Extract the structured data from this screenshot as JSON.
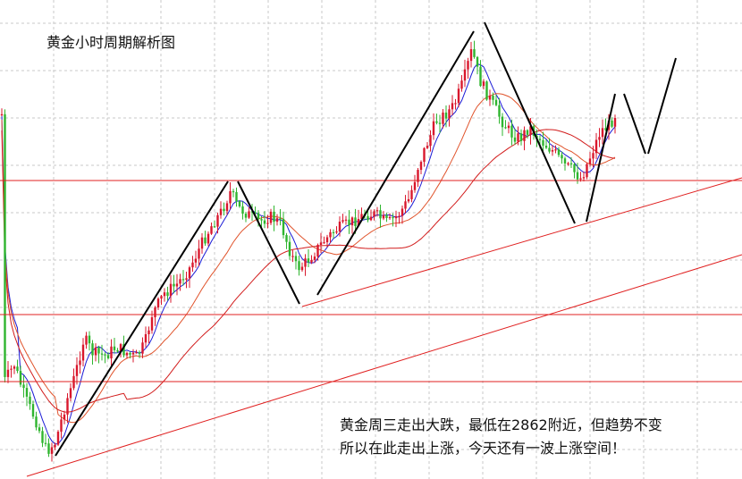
{
  "chart_data": {
    "type": "candlestick",
    "title": "黄金小时周期解析图",
    "annotation_lines": [
      "黄金周三走出大跌，最低在2862附近，但趋势不变",
      "所以在此走出上涨，今天还有一波上涨空间！"
    ],
    "grid": true,
    "axis_labels": "none",
    "colors": {
      "bull": "#d9182d",
      "bear": "#2fb52f",
      "ma_fast": "#1b1bd6",
      "ma_slow": "#e0532b",
      "ma_slow2": "#d21c1c",
      "horizontal_level": "#e02020",
      "trend_line": "#e02020",
      "wave_line": "#000000",
      "grid": "#c8c8c8"
    },
    "horizontal_levels": 3,
    "ascending_trend_lines": 2,
    "wave_projection": "zigzag"
  }
}
